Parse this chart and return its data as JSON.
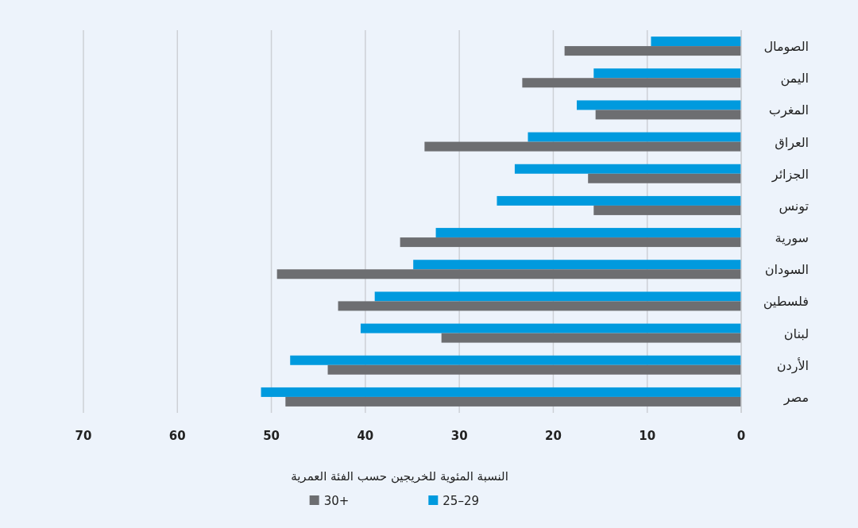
{
  "chart_data": {
    "type": "bar",
    "orientation": "horizontal",
    "xlabel": "النسبة المئوية للخريجين حسب الفئة العمرية",
    "categories": [
      "الصومال",
      "اليمن",
      "المغرب",
      "العراق",
      "الجزائر",
      "تونس",
      "سورية",
      "السودان",
      "فلسطين",
      "لبنان",
      "الأردن",
      "مصر"
    ],
    "series": [
      {
        "name": "25–29",
        "color": "#009ade",
        "values": [
          9.6,
          15.7,
          17.5,
          22.7,
          24.1,
          26.0,
          32.5,
          34.9,
          39.0,
          40.5,
          48.0,
          51.1
        ]
      },
      {
        "name": "30+",
        "color": "#6d6e71",
        "values": [
          18.8,
          23.3,
          15.5,
          33.7,
          16.3,
          15.7,
          36.3,
          49.4,
          42.9,
          31.9,
          44.0,
          48.5
        ]
      }
    ],
    "xlim": [
      70,
      0
    ],
    "xticks": [
      70,
      60,
      50,
      40,
      30,
      20,
      10,
      0
    ],
    "grid": "x",
    "legend": "bottom"
  }
}
